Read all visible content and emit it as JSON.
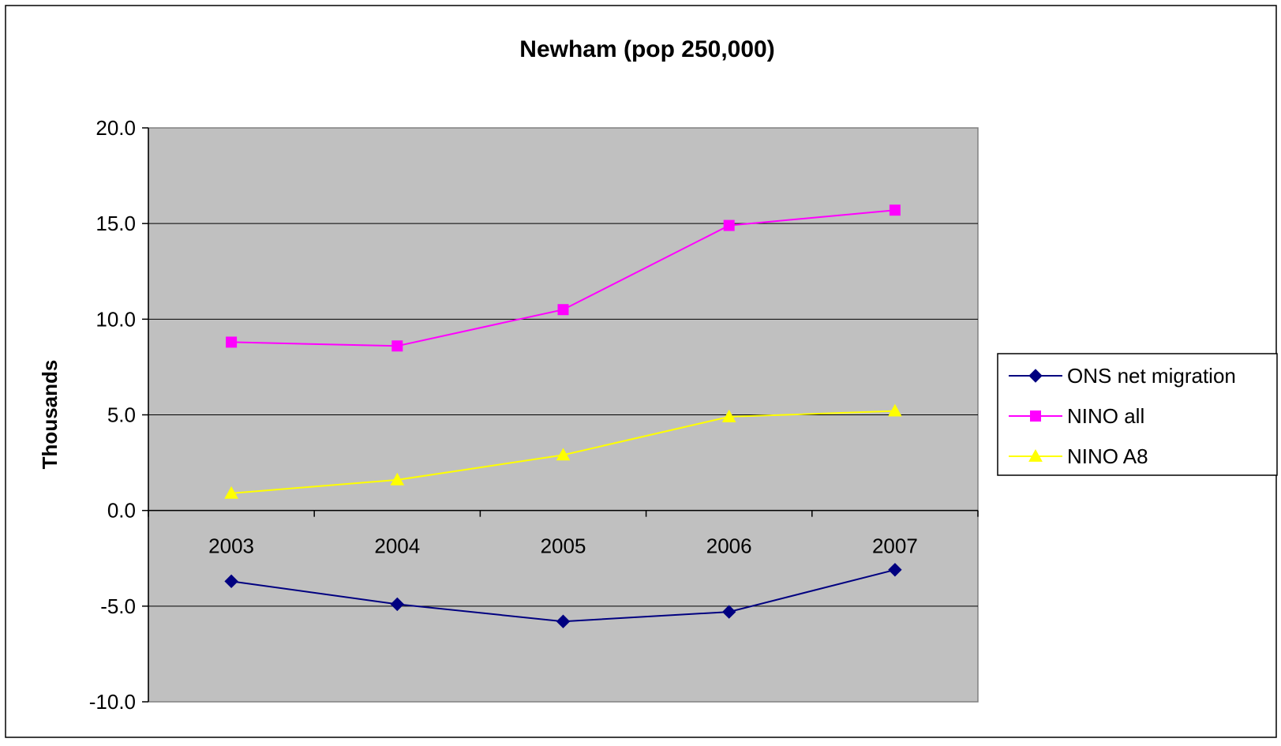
{
  "chart_data": {
    "type": "line",
    "title": "Newham (pop 250,000)",
    "ylabel": "Thousands",
    "xlabel": "",
    "categories": [
      "2003",
      "2004",
      "2005",
      "2006",
      "2007"
    ],
    "ylim": [
      -10,
      20
    ],
    "ytick_step": 5,
    "ytick_labels": [
      "20.0",
      "15.0",
      "10.0",
      "5.0",
      "0.0",
      "-5.0",
      "-10.0"
    ],
    "grid": true,
    "legend_position": "right",
    "plot_background": "#c0c0c0",
    "series": [
      {
        "name": "ONS net migration",
        "values": [
          -3.7,
          -4.9,
          -5.8,
          -5.3,
          -3.1
        ],
        "color": "#000080",
        "marker": "diamond"
      },
      {
        "name": "NINO all",
        "values": [
          8.8,
          8.6,
          10.5,
          14.9,
          15.7
        ],
        "color": "#ff00ff",
        "marker": "square"
      },
      {
        "name": "NINO A8",
        "values": [
          0.9,
          1.6,
          2.9,
          4.9,
          5.2
        ],
        "color": "#ffff00",
        "marker": "triangle"
      }
    ]
  }
}
